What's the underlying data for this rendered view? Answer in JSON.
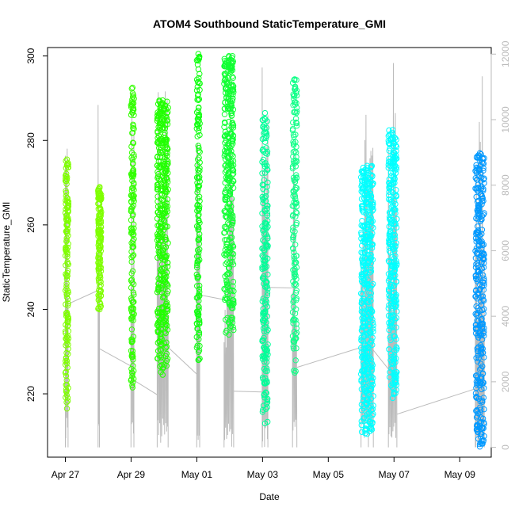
{
  "chart_data": {
    "type": "scatter",
    "title": "ATOM4 Southbound StaticTemperature_GMI",
    "xlabel": "Date",
    "ylabel": "StaticTemperature_GMI",
    "x_ticks": [
      "Apr 27",
      "Apr 29",
      "May 01",
      "May 03",
      "May 05",
      "May 07",
      "May 09"
    ],
    "x_tick_dates": [
      "2018-04-27",
      "2018-04-29",
      "2018-05-01",
      "2018-05-03",
      "2018-05-05",
      "2018-05-07",
      "2018-05-09"
    ],
    "xlim": [
      "2018-04-26T11:00",
      "2018-05-09T23:00"
    ],
    "ylim": [
      205,
      302
    ],
    "y_ticks": [
      220,
      240,
      260,
      280,
      300
    ],
    "y2lim": [
      -300,
      12200
    ],
    "y2_ticks": [
      0,
      2000,
      4000,
      6000,
      8000,
      10000,
      12000
    ],
    "y2_label_color": "#bbbbbb",
    "altitude_line_color": "#bbbbbb",
    "marker": "open-circle",
    "grid": false,
    "legend": "none",
    "series": [
      {
        "color": "#7fff00",
        "start": "2018-04-27T00:00",
        "end": "2018-04-27T02:00",
        "range": [
          216.5,
          275.5
        ]
      },
      {
        "color": "#7fff00",
        "start": "2018-04-27T23:55",
        "end": "2018-04-28T00:55",
        "range": [
          240.0,
          269.0
        ]
      },
      {
        "color": "#33ff00",
        "start": "2018-04-28T23:55",
        "end": "2018-04-29T02:05",
        "range": [
          221.5,
          292.5
        ]
      },
      {
        "color": "#22ff00",
        "start": "2018-04-29T19:05",
        "end": "2018-04-30T03:05",
        "range": [
          224.5,
          289.5
        ]
      },
      {
        "color": "#11ff11",
        "start": "2018-04-30T23:55",
        "end": "2018-05-01T02:05",
        "range": [
          228.0,
          300.5
        ]
      },
      {
        "color": "#11ff33",
        "start": "2018-05-01T19:55",
        "end": "2018-05-02T02:55",
        "range": [
          234.0,
          300.0
        ]
      },
      {
        "color": "#00ff99",
        "start": "2018-05-02T23:45",
        "end": "2018-05-03T03:55",
        "range": [
          213.0,
          286.5
        ]
      },
      {
        "color": "#11ff88",
        "start": "2018-05-03T21:55",
        "end": "2018-05-04T01:05",
        "range": [
          225.0,
          294.5
        ]
      },
      {
        "color": "#00ffff",
        "start": "2018-05-05T23:55",
        "end": "2018-05-06T08:55",
        "range": [
          210.5,
          274.0
        ]
      },
      {
        "color": "#00ffff",
        "start": "2018-05-06T19:55",
        "end": "2018-05-07T02:05",
        "range": [
          219.0,
          282.5
        ]
      },
      {
        "color": "#0099ff",
        "start": "2018-05-09T11:25",
        "end": "2018-05-09T17:55",
        "range": [
          207.5,
          277.0
        ]
      }
    ]
  }
}
